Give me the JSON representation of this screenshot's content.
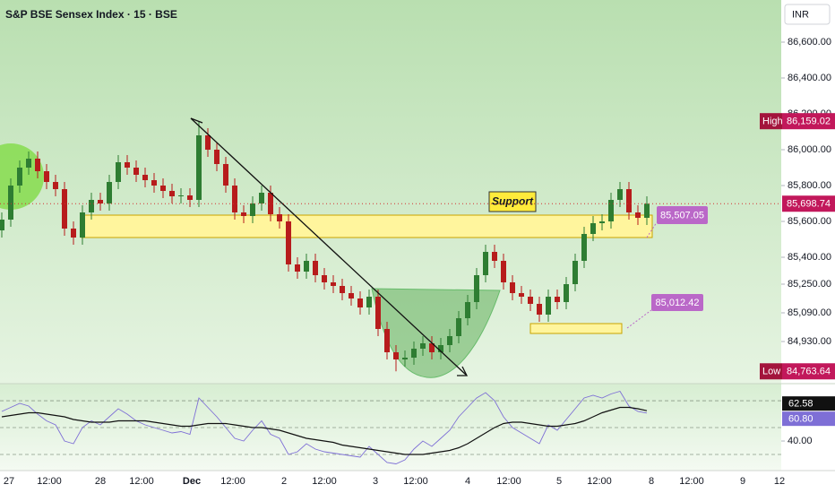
{
  "chart_data": {
    "type": "candlestick",
    "title": "S&P BSE Sensex Index · 15 · BSE",
    "currency": "INR",
    "up_color": "#2e7d32",
    "down_color": "#b71c1c",
    "ylim": [
      84695,
      86835
    ],
    "yticks": [
      {
        "value": 86600,
        "label": "86,600.00"
      },
      {
        "value": 86400,
        "label": "86,400.00"
      },
      {
        "value": 86200,
        "label": "86,200.00"
      },
      {
        "value": 86000,
        "label": "86,000.00"
      },
      {
        "value": 85800,
        "label": "85,800.00"
      },
      {
        "value": 85600,
        "label": "85,600.00"
      },
      {
        "value": 85400,
        "label": "85,400.00"
      },
      {
        "value": 85250,
        "label": "85,250.00"
      },
      {
        "value": 85090,
        "label": "85,090.00"
      },
      {
        "value": 84930,
        "label": "84,930.00"
      }
    ],
    "time_labels": [
      "27",
      "12:00",
      "28",
      "12:00",
      "Dec",
      "12:00",
      "2",
      "12:00",
      "3",
      "12:00",
      "4",
      "12:00",
      "5",
      "12:00",
      "8",
      "12:00",
      "9",
      "12"
    ],
    "candles": {
      "open": [
        85550,
        85610,
        85800,
        85900,
        85950,
        85880,
        85820,
        85780,
        85560,
        85510,
        85650,
        85720,
        85700,
        85820,
        85930,
        85900,
        85860,
        85830,
        85800,
        85770,
        85740,
        85745,
        85720,
        86080,
        86000,
        85920,
        85800,
        85650,
        85630,
        85700,
        85760,
        85640,
        85600,
        85360,
        85320,
        85380,
        85300,
        85260,
        85240,
        85200,
        85170,
        85120,
        85180,
        85000,
        84870,
        84830,
        84840,
        84890,
        84920,
        84870,
        84910,
        84960,
        85060,
        85150,
        85300,
        85430,
        85380,
        85260,
        85200,
        85180,
        85140,
        85080,
        85180,
        85150,
        85250,
        85380,
        85530,
        85590,
        85600,
        85720,
        85780,
        85650,
        85620
      ],
      "high": [
        85650,
        85840,
        85940,
        85990,
        85990,
        85920,
        85860,
        85820,
        85600,
        85690,
        85760,
        85760,
        85860,
        85970,
        85970,
        85940,
        85900,
        85870,
        85840,
        85810,
        85785,
        85785,
        86159.02,
        86120,
        86040,
        85960,
        85840,
        85690,
        85740,
        85800,
        85800,
        85680,
        85640,
        85400,
        85420,
        85420,
        85340,
        85300,
        85280,
        85240,
        85210,
        85220,
        85220,
        85040,
        84910,
        84880,
        84930,
        84960,
        84960,
        84950,
        85000,
        85100,
        85190,
        85340,
        85470,
        85470,
        85420,
        85300,
        85240,
        85220,
        85180,
        85220,
        85220,
        85290,
        85420,
        85570,
        85630,
        85640,
        85760,
        85820,
        85820,
        85690,
        85740
      ],
      "low": [
        85510,
        85570,
        85760,
        85860,
        85840,
        85780,
        85740,
        85520,
        85470,
        85470,
        85610,
        85660,
        85660,
        85780,
        85860,
        85820,
        85790,
        85760,
        85730,
        85700,
        85700,
        85680,
        85680,
        85960,
        85880,
        85760,
        85610,
        85590,
        85590,
        85660,
        85600,
        85560,
        85320,
        85280,
        85280,
        85260,
        85220,
        85200,
        85160,
        85130,
        85080,
        85080,
        84960,
        84830,
        84763.64,
        84790,
        84800,
        84850,
        84830,
        84830,
        84870,
        84920,
        85020,
        85110,
        85260,
        85340,
        85220,
        85160,
        85140,
        85100,
        85040,
        85040,
        85110,
        85110,
        85210,
        85340,
        85490,
        85550,
        85560,
        85680,
        85610,
        85580,
        85580
      ],
      "close": [
        85610,
        85800,
        85900,
        85950,
        85880,
        85820,
        85780,
        85560,
        85510,
        85650,
        85720,
        85700,
        85820,
        85930,
        85900,
        85860,
        85830,
        85800,
        85770,
        85740,
        85745,
        85720,
        86080,
        86000,
        85920,
        85800,
        85650,
        85630,
        85700,
        85760,
        85640,
        85600,
        85360,
        85320,
        85380,
        85300,
        85260,
        85240,
        85200,
        85170,
        85120,
        85180,
        85000,
        84870,
        84830,
        84840,
        84890,
        84920,
        84870,
        84910,
        84960,
        85060,
        85150,
        85300,
        85430,
        85380,
        85260,
        85200,
        85180,
        85140,
        85080,
        85180,
        85150,
        85250,
        85380,
        85530,
        85590,
        85600,
        85720,
        85780,
        85650,
        85620,
        85698.74
      ]
    },
    "high_marker": {
      "text": "High",
      "label": "86,159.02"
    },
    "low_marker": {
      "text": "Low",
      "label": "84,763.64"
    },
    "last_label": "85,698.74",
    "annotations": {
      "support": "Support",
      "level_1": "85,507.05",
      "level_2": "85,012.42"
    },
    "rsi": {
      "ylim": [
        18,
        82.7
      ],
      "yticks": [
        {
          "value": 40,
          "label": "40.00"
        }
      ],
      "levels": [
        70,
        50,
        30
      ],
      "series": [
        {
          "color": "#7e6fd6",
          "last_label": "60.80",
          "values": [
            62,
            65,
            68,
            66,
            60,
            55,
            52,
            40,
            38,
            50,
            55,
            52,
            58,
            64,
            60,
            55,
            52,
            50,
            48,
            46,
            47,
            45,
            72,
            65,
            58,
            50,
            42,
            40,
            48,
            55,
            45,
            42,
            30,
            32,
            38,
            34,
            32,
            31,
            30,
            29,
            28,
            36,
            30,
            24,
            23,
            26,
            34,
            40,
            36,
            42,
            48,
            58,
            65,
            72,
            76,
            70,
            58,
            50,
            46,
            42,
            38,
            52,
            48,
            56,
            64,
            72,
            74,
            72,
            75,
            77,
            66,
            62,
            60.8
          ]
        },
        {
          "color": "#111111",
          "values": [
            58,
            59,
            60,
            61,
            61,
            60,
            59,
            58,
            56,
            55,
            54,
            54,
            54,
            55,
            55,
            55,
            55,
            54,
            53,
            52,
            51,
            51,
            52,
            53,
            53,
            53,
            52,
            51,
            50,
            50,
            49,
            48,
            46,
            44,
            42,
            41,
            40,
            39,
            37,
            36,
            35,
            34,
            33,
            32,
            31,
            30,
            30,
            30,
            31,
            32,
            33,
            35,
            38,
            42,
            46,
            50,
            53,
            54,
            54,
            53,
            52,
            51,
            51,
            52,
            53,
            55,
            58,
            61,
            63,
            65,
            65,
            64,
            62.58
          ]
        }
      ]
    }
  }
}
